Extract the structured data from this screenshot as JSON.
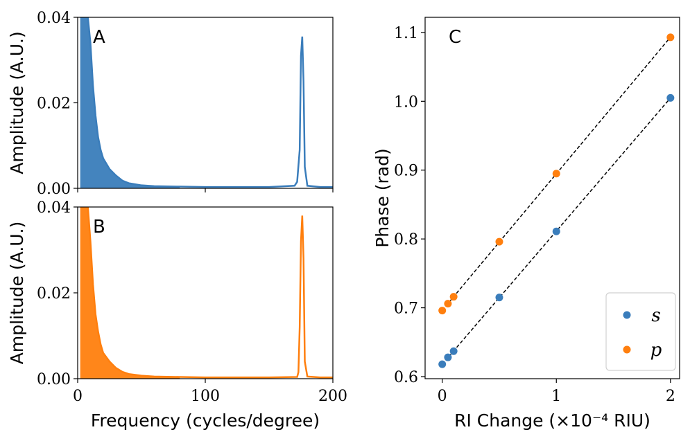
{
  "colors": {
    "s": "#3a7dbb",
    "p": "#ff7f0e"
  },
  "chart_data": [
    {
      "panel": "A",
      "type": "line",
      "xlabel": "",
      "ylabel": "Amplitude (A.U.)",
      "xlim": [
        0,
        200
      ],
      "ylim": [
        0,
        0.04
      ],
      "xticks": [
        0,
        100,
        200
      ],
      "xtick_labels_visible": false,
      "yticks": [
        0.0,
        0.02,
        0.04
      ],
      "ytick_labels": [
        "0.00",
        "0.02",
        "0.04"
      ],
      "grid": false,
      "series": [
        {
          "color": "#3a7dbb",
          "x": [
            2,
            4,
            6,
            8,
            10,
            12,
            14,
            16,
            18,
            20,
            25,
            30,
            35,
            40,
            50,
            60,
            80,
            100,
            120,
            150,
            170,
            172,
            174,
            175,
            176,
            177,
            178,
            180,
            190,
            200
          ],
          "y": [
            0.04,
            0.04,
            0.04,
            0.04,
            0.034,
            0.024,
            0.017,
            0.012,
            0.009,
            0.007,
            0.0045,
            0.003,
            0.0018,
            0.0012,
            0.0007,
            0.0005,
            0.0004,
            0.0003,
            0.0003,
            0.0003,
            0.0006,
            0.0015,
            0.009,
            0.031,
            0.0355,
            0.025,
            0.005,
            0.0006,
            0.0003,
            0.0003
          ]
        }
      ]
    },
    {
      "panel": "B",
      "type": "line",
      "xlabel": "Frequency (cycles/degree)",
      "ylabel": "Amplitude (A.U.)",
      "xlim": [
        0,
        200
      ],
      "ylim": [
        0,
        0.04
      ],
      "xticks": [
        0,
        100,
        200
      ],
      "xtick_labels": [
        "0",
        "100",
        "200"
      ],
      "yticks": [
        0.0,
        0.02,
        0.04
      ],
      "ytick_labels": [
        "0.00",
        "0.02",
        "0.04"
      ],
      "grid": false,
      "series": [
        {
          "color": "#ff7f0e",
          "x": [
            2,
            4,
            6,
            8,
            10,
            12,
            14,
            16,
            18,
            20,
            25,
            30,
            35,
            40,
            50,
            60,
            80,
            100,
            120,
            150,
            172,
            173,
            174,
            175,
            176,
            177,
            178,
            180,
            190,
            200
          ],
          "y": [
            0.04,
            0.04,
            0.04,
            0.04,
            0.032,
            0.022,
            0.015,
            0.011,
            0.008,
            0.006,
            0.004,
            0.0025,
            0.0016,
            0.0011,
            0.0007,
            0.0005,
            0.0004,
            0.0003,
            0.0003,
            0.0003,
            0.0004,
            0.0015,
            0.012,
            0.032,
            0.038,
            0.028,
            0.004,
            0.0005,
            0.0003,
            0.0003
          ]
        }
      ]
    },
    {
      "panel": "C",
      "type": "scatter",
      "xlabel": "RI Change (×10⁻⁴ RIU)",
      "ylabel": "Phase (rad)",
      "xlim": [
        -0.15,
        2.08
      ],
      "ylim": [
        0.597,
        1.122
      ],
      "xticks": [
        0,
        1,
        2
      ],
      "xtick_labels": [
        "0",
        "1",
        "2"
      ],
      "yticks": [
        0.6,
        0.7,
        0.8,
        0.9,
        1.0,
        1.1
      ],
      "ytick_labels": [
        "0.6",
        "0.7",
        "0.8",
        "0.9",
        "1.0",
        "1.1"
      ],
      "grid": false,
      "legend_position": "bottom-right",
      "series": [
        {
          "name": "s",
          "color": "#3a7dbb",
          "x": [
            0,
            0.05,
            0.1,
            0.5,
            1.0,
            2.0
          ],
          "y": [
            0.618,
            0.628,
            0.637,
            0.715,
            0.811,
            1.005
          ],
          "fit_line": true
        },
        {
          "name": "p",
          "color": "#ff7f0e",
          "x": [
            0,
            0.05,
            0.1,
            0.5,
            1.0,
            2.0
          ],
          "y": [
            0.696,
            0.706,
            0.716,
            0.796,
            0.895,
            1.093
          ],
          "fit_line": true
        }
      ]
    }
  ]
}
